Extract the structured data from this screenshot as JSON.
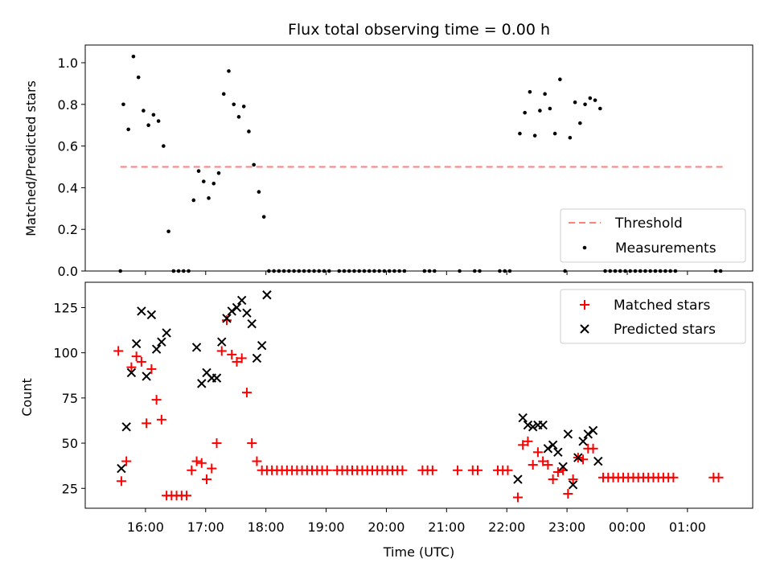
{
  "chart_data": [
    {
      "type": "scatter",
      "title": "Flux total observing time = 0.00 h",
      "xlabel": "",
      "ylabel": "Matched/Predicted stars",
      "ylim": [
        0,
        1.085
      ],
      "yticks": [
        "0.0",
        "0.2",
        "0.4",
        "0.6",
        "0.8",
        "1.0"
      ],
      "legend_position": "bottom-right",
      "threshold": {
        "name": "Threshold",
        "value": 0.5,
        "x_start": "15:35",
        "x_end": "01:35",
        "color": "#ff7f7f"
      },
      "series": [
        {
          "name": "Measurements",
          "color": "#000000",
          "points": [
            [
              "15:35",
              0.0
            ],
            [
              "15:38",
              0.8
            ],
            [
              "15:43",
              0.68
            ],
            [
              "15:48",
              1.03
            ],
            [
              "15:53",
              0.93
            ],
            [
              "15:58",
              0.77
            ],
            [
              "16:03",
              0.7
            ],
            [
              "16:08",
              0.75
            ],
            [
              "16:13",
              0.72
            ],
            [
              "16:18",
              0.6
            ],
            [
              "16:23",
              0.19
            ],
            [
              "16:28",
              0.0
            ],
            [
              "16:33",
              0.0
            ],
            [
              "16:38",
              0.0
            ],
            [
              "16:43",
              0.0
            ],
            [
              "16:48",
              0.34
            ],
            [
              "16:53",
              0.48
            ],
            [
              "16:58",
              0.43
            ],
            [
              "17:03",
              0.35
            ],
            [
              "17:08",
              0.42
            ],
            [
              "17:13",
              0.47
            ],
            [
              "17:18",
              0.85
            ],
            [
              "17:23",
              0.96
            ],
            [
              "17:28",
              0.8
            ],
            [
              "17:33",
              0.74
            ],
            [
              "17:38",
              0.79
            ],
            [
              "17:43",
              0.67
            ],
            [
              "17:48",
              0.51
            ],
            [
              "17:53",
              0.38
            ],
            [
              "17:58",
              0.26
            ],
            [
              "18:03",
              0.0
            ],
            [
              "18:08",
              0.0
            ],
            [
              "18:13",
              0.0
            ],
            [
              "18:18",
              0.0
            ],
            [
              "18:23",
              0.0
            ],
            [
              "18:28",
              0.0
            ],
            [
              "18:33",
              0.0
            ],
            [
              "18:38",
              0.0
            ],
            [
              "18:43",
              0.0
            ],
            [
              "18:48",
              0.0
            ],
            [
              "18:53",
              0.0
            ],
            [
              "18:58",
              0.0
            ],
            [
              "19:03",
              0.0
            ],
            [
              "19:13",
              0.0
            ],
            [
              "19:18",
              0.0
            ],
            [
              "19:23",
              0.0
            ],
            [
              "19:28",
              0.0
            ],
            [
              "19:33",
              0.0
            ],
            [
              "19:38",
              0.0
            ],
            [
              "19:43",
              0.0
            ],
            [
              "19:48",
              0.0
            ],
            [
              "19:53",
              0.0
            ],
            [
              "19:58",
              0.0
            ],
            [
              "20:03",
              0.0
            ],
            [
              "20:08",
              0.0
            ],
            [
              "20:13",
              0.0
            ],
            [
              "20:18",
              0.0
            ],
            [
              "20:38",
              0.0
            ],
            [
              "20:43",
              0.0
            ],
            [
              "20:48",
              0.0
            ],
            [
              "21:13",
              0.0
            ],
            [
              "21:28",
              0.0
            ],
            [
              "21:33",
              0.0
            ],
            [
              "21:53",
              0.0
            ],
            [
              "21:58",
              0.0
            ],
            [
              "22:03",
              0.0
            ],
            [
              "22:13",
              0.66
            ],
            [
              "22:18",
              0.76
            ],
            [
              "22:23",
              0.86
            ],
            [
              "22:28",
              0.65
            ],
            [
              "22:33",
              0.77
            ],
            [
              "22:38",
              0.85
            ],
            [
              "22:43",
              0.78
            ],
            [
              "22:48",
              0.66
            ],
            [
              "22:53",
              0.92
            ],
            [
              "22:58",
              0.0
            ],
            [
              "23:03",
              0.64
            ],
            [
              "23:08",
              0.81
            ],
            [
              "23:13",
              0.71
            ],
            [
              "23:18",
              0.8
            ],
            [
              "23:23",
              0.83
            ],
            [
              "23:28",
              0.82
            ],
            [
              "23:33",
              0.78
            ],
            [
              "23:38",
              0.0
            ],
            [
              "23:43",
              0.0
            ],
            [
              "23:48",
              0.0
            ],
            [
              "23:53",
              0.0
            ],
            [
              "23:58",
              0.0
            ],
            [
              "00:03",
              0.0
            ],
            [
              "00:08",
              0.0
            ],
            [
              "00:13",
              0.0
            ],
            [
              "00:18",
              0.0
            ],
            [
              "00:23",
              0.0
            ],
            [
              "00:28",
              0.0
            ],
            [
              "00:33",
              0.0
            ],
            [
              "00:38",
              0.0
            ],
            [
              "00:43",
              0.0
            ],
            [
              "00:48",
              0.0
            ],
            [
              "01:28",
              0.0
            ],
            [
              "01:33",
              0.0
            ]
          ]
        }
      ]
    },
    {
      "type": "scatter",
      "title": "",
      "xlabel": "Time (UTC)",
      "ylabel": "Count",
      "ylim": [
        14,
        139
      ],
      "yticks": [
        "25",
        "50",
        "75",
        "100",
        "125"
      ],
      "xticks": [
        "16:00",
        "17:00",
        "18:00",
        "19:00",
        "20:00",
        "21:00",
        "22:00",
        "23:00",
        "00:00",
        "01:00"
      ],
      "x_range": [
        "15:00",
        "02:05"
      ],
      "legend_position": "top-right",
      "series": [
        {
          "name": "Matched stars",
          "marker": "plus",
          "color": "#ff0000",
          "points": [
            [
              "15:33",
              101
            ],
            [
              "15:36",
              29
            ],
            [
              "15:41",
              40
            ],
            [
              "15:46",
              92
            ],
            [
              "15:51",
              98
            ],
            [
              "15:56",
              95
            ],
            [
              "16:01",
              61
            ],
            [
              "16:06",
              91
            ],
            [
              "16:11",
              74
            ],
            [
              "16:16",
              63
            ],
            [
              "16:21",
              21
            ],
            [
              "16:26",
              21
            ],
            [
              "16:31",
              21
            ],
            [
              "16:36",
              21
            ],
            [
              "16:41",
              21
            ],
            [
              "16:46",
              35
            ],
            [
              "16:51",
              40
            ],
            [
              "16:56",
              39
            ],
            [
              "17:01",
              30
            ],
            [
              "17:06",
              36
            ],
            [
              "17:11",
              50
            ],
            [
              "17:16",
              101
            ],
            [
              "17:21",
              118
            ],
            [
              "17:26",
              99
            ],
            [
              "17:31",
              95
            ],
            [
              "17:36",
              97
            ],
            [
              "17:41",
              78
            ],
            [
              "17:46",
              50
            ],
            [
              "17:51",
              40
            ],
            [
              "17:56",
              35
            ],
            [
              "18:01",
              35
            ],
            [
              "18:06",
              35
            ],
            [
              "18:11",
              35
            ],
            [
              "18:16",
              35
            ],
            [
              "18:21",
              35
            ],
            [
              "18:26",
              35
            ],
            [
              "18:31",
              35
            ],
            [
              "18:36",
              35
            ],
            [
              "18:41",
              35
            ],
            [
              "18:46",
              35
            ],
            [
              "18:51",
              35
            ],
            [
              "18:56",
              35
            ],
            [
              "19:01",
              35
            ],
            [
              "19:11",
              35
            ],
            [
              "19:16",
              35
            ],
            [
              "19:21",
              35
            ],
            [
              "19:26",
              35
            ],
            [
              "19:31",
              35
            ],
            [
              "19:36",
              35
            ],
            [
              "19:41",
              35
            ],
            [
              "19:46",
              35
            ],
            [
              "19:51",
              35
            ],
            [
              "19:56",
              35
            ],
            [
              "20:01",
              35
            ],
            [
              "20:06",
              35
            ],
            [
              "20:11",
              35
            ],
            [
              "20:16",
              35
            ],
            [
              "20:36",
              35
            ],
            [
              "20:41",
              35
            ],
            [
              "20:46",
              35
            ],
            [
              "21:11",
              35
            ],
            [
              "21:26",
              35
            ],
            [
              "21:31",
              35
            ],
            [
              "21:51",
              35
            ],
            [
              "21:56",
              35
            ],
            [
              "22:01",
              35
            ],
            [
              "22:11",
              20
            ],
            [
              "22:16",
              49
            ],
            [
              "22:21",
              51
            ],
            [
              "22:26",
              38
            ],
            [
              "22:31",
              45
            ],
            [
              "22:36",
              40
            ],
            [
              "22:41",
              38
            ],
            [
              "22:46",
              30
            ],
            [
              "22:51",
              34
            ],
            [
              "22:56",
              35
            ],
            [
              "23:01",
              22
            ],
            [
              "23:06",
              30
            ],
            [
              "23:11",
              42
            ],
            [
              "23:16",
              41
            ],
            [
              "23:21",
              47
            ],
            [
              "23:26",
              47
            ],
            [
              "23:36",
              31
            ],
            [
              "23:41",
              31
            ],
            [
              "23:46",
              31
            ],
            [
              "23:51",
              31
            ],
            [
              "23:56",
              31
            ],
            [
              "00:01",
              31
            ],
            [
              "00:06",
              31
            ],
            [
              "00:11",
              31
            ],
            [
              "00:16",
              31
            ],
            [
              "00:21",
              31
            ],
            [
              "00:26",
              31
            ],
            [
              "00:31",
              31
            ],
            [
              "00:36",
              31
            ],
            [
              "00:41",
              31
            ],
            [
              "00:46",
              31
            ],
            [
              "01:26",
              31
            ],
            [
              "01:31",
              31
            ]
          ]
        },
        {
          "name": "Predicted stars",
          "marker": "x",
          "color": "#000000",
          "points": [
            [
              "15:36",
              36
            ],
            [
              "15:41",
              59
            ],
            [
              "15:46",
              89
            ],
            [
              "15:51",
              105
            ],
            [
              "15:56",
              123
            ],
            [
              "16:01",
              87
            ],
            [
              "16:06",
              121
            ],
            [
              "16:11",
              102
            ],
            [
              "16:16",
              106
            ],
            [
              "16:21",
              111
            ],
            [
              "16:51",
              103
            ],
            [
              "16:56",
              83
            ],
            [
              "17:01",
              89
            ],
            [
              "17:06",
              86
            ],
            [
              "17:11",
              86
            ],
            [
              "17:16",
              106
            ],
            [
              "17:21",
              119
            ],
            [
              "17:26",
              123
            ],
            [
              "17:31",
              125
            ],
            [
              "17:36",
              129
            ],
            [
              "17:41",
              122
            ],
            [
              "17:46",
              116
            ],
            [
              "17:51",
              97
            ],
            [
              "17:56",
              104
            ],
            [
              "18:01",
              132
            ],
            [
              "22:11",
              30
            ],
            [
              "22:16",
              64
            ],
            [
              "22:21",
              60
            ],
            [
              "22:26",
              59
            ],
            [
              "22:31",
              60
            ],
            [
              "22:36",
              60
            ],
            [
              "22:41",
              47
            ],
            [
              "22:46",
              49
            ],
            [
              "22:51",
              45
            ],
            [
              "22:56",
              37
            ],
            [
              "23:01",
              55
            ],
            [
              "23:06",
              27
            ],
            [
              "23:11",
              42
            ],
            [
              "23:16",
              51
            ],
            [
              "23:21",
              55
            ],
            [
              "23:26",
              57
            ],
            [
              "23:31",
              40
            ]
          ]
        }
      ]
    }
  ]
}
